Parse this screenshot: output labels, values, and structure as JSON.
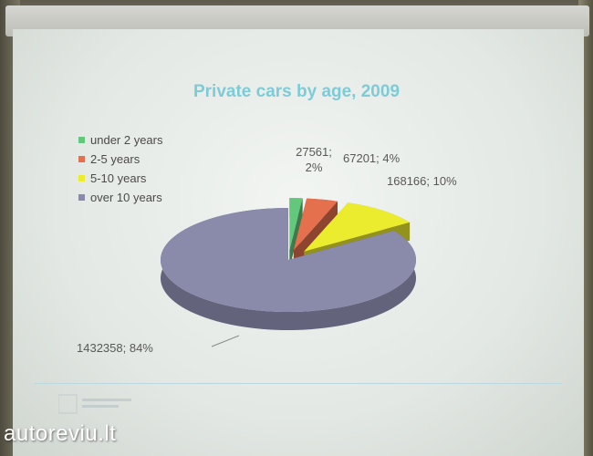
{
  "chart_data": {
    "type": "pie",
    "title": "Private cars by age, 2009",
    "legend_position": "top-left",
    "three_d": true,
    "exploded": true,
    "series": [
      {
        "name": "under 2 years",
        "value": 27561,
        "percent": "2%",
        "color": "#63c77c"
      },
      {
        "name": "2-5 years",
        "value": 67201,
        "percent": "4%",
        "color": "#e4704d"
      },
      {
        "name": "5-10 years",
        "value": 168166,
        "percent": "10%",
        "color": "#ecec2e"
      },
      {
        "name": "over 10 years",
        "value": 1432358,
        "percent": "84%",
        "color": "#8a8aab"
      }
    ],
    "labels": [
      {
        "line1": "27561;",
        "line2": "2%"
      },
      {
        "line1": "67201; 4%"
      },
      {
        "line1": "168166; 10%"
      },
      {
        "line1": "1432358; 84%"
      }
    ]
  },
  "watermark": {
    "text": "autoreviu.lt"
  }
}
